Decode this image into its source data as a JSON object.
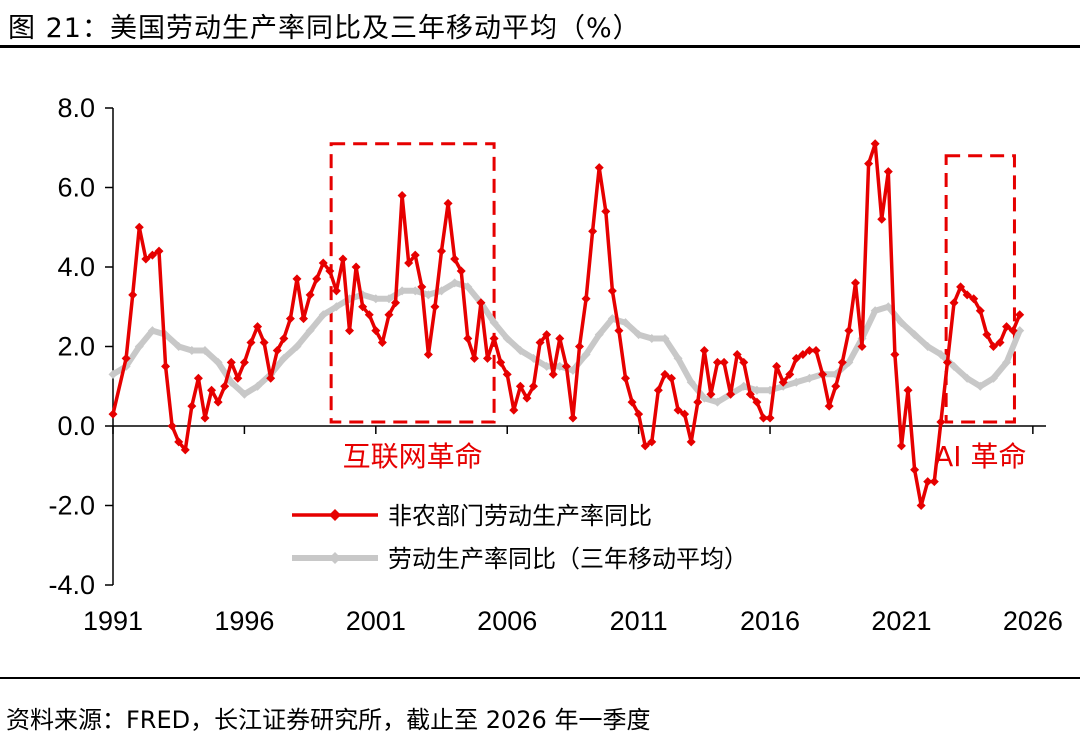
{
  "figure": {
    "title": "图 21：美国劳动生产率同比及三年移动平均（%）",
    "source": "资料来源：FRED，长江证券研究所，截止至 2026 年一季度"
  },
  "chart_data": {
    "type": "line",
    "ylim": [
      -4,
      8
    ],
    "yticks": [
      "8.0",
      "6.0",
      "4.0",
      "2.0",
      "0.0",
      "-2.0",
      "-4.0"
    ],
    "xlim": [
      1991,
      2026.5
    ],
    "xticks": [
      "1991",
      "1996",
      "2001",
      "2006",
      "2011",
      "2016",
      "2021",
      "2026"
    ],
    "grid": false,
    "legend_position": "lower-middle",
    "colors": {
      "series1": "#e60000",
      "series2": "#c8c8c8",
      "annotation": "#e60000"
    },
    "series": [
      {
        "name": "非农部门劳动生产率同比",
        "points": [
          [
            1991.0,
            0.3
          ],
          [
            1991.5,
            1.7
          ],
          [
            1991.75,
            3.3
          ],
          [
            1992.0,
            5.0
          ],
          [
            1992.25,
            4.2
          ],
          [
            1992.5,
            4.3
          ],
          [
            1992.75,
            4.4
          ],
          [
            1993.0,
            1.5
          ],
          [
            1993.25,
            0.0
          ],
          [
            1993.5,
            -0.4
          ],
          [
            1993.75,
            -0.6
          ],
          [
            1994.0,
            0.5
          ],
          [
            1994.25,
            1.2
          ],
          [
            1994.5,
            0.2
          ],
          [
            1994.75,
            0.9
          ],
          [
            1995.0,
            0.6
          ],
          [
            1995.25,
            1.0
          ],
          [
            1995.5,
            1.6
          ],
          [
            1995.75,
            1.2
          ],
          [
            1996.0,
            1.6
          ],
          [
            1996.25,
            2.1
          ],
          [
            1996.5,
            2.5
          ],
          [
            1996.75,
            2.1
          ],
          [
            1997.0,
            1.2
          ],
          [
            1997.25,
            1.9
          ],
          [
            1997.5,
            2.2
          ],
          [
            1997.75,
            2.7
          ],
          [
            1998.0,
            3.7
          ],
          [
            1998.25,
            2.7
          ],
          [
            1998.5,
            3.3
          ],
          [
            1998.75,
            3.7
          ],
          [
            1999.0,
            4.1
          ],
          [
            1999.25,
            3.9
          ],
          [
            1999.5,
            3.4
          ],
          [
            1999.75,
            4.2
          ],
          [
            2000.0,
            2.4
          ],
          [
            2000.25,
            4.0
          ],
          [
            2000.5,
            3.0
          ],
          [
            2000.75,
            2.8
          ],
          [
            2001.0,
            2.4
          ],
          [
            2001.25,
            2.1
          ],
          [
            2001.5,
            2.8
          ],
          [
            2001.75,
            3.1
          ],
          [
            2002.0,
            5.8
          ],
          [
            2002.25,
            4.1
          ],
          [
            2002.5,
            4.3
          ],
          [
            2002.75,
            3.5
          ],
          [
            2003.0,
            1.8
          ],
          [
            2003.25,
            3.0
          ],
          [
            2003.5,
            4.4
          ],
          [
            2003.75,
            5.6
          ],
          [
            2004.0,
            4.2
          ],
          [
            2004.25,
            3.9
          ],
          [
            2004.5,
            2.2
          ],
          [
            2004.75,
            1.7
          ],
          [
            2005.0,
            3.1
          ],
          [
            2005.25,
            1.7
          ],
          [
            2005.5,
            2.2
          ],
          [
            2005.75,
            1.6
          ],
          [
            2006.0,
            1.3
          ],
          [
            2006.25,
            0.4
          ],
          [
            2006.5,
            1.0
          ],
          [
            2006.75,
            0.7
          ],
          [
            2007.0,
            1.0
          ],
          [
            2007.25,
            2.1
          ],
          [
            2007.5,
            2.3
          ],
          [
            2007.75,
            1.3
          ],
          [
            2008.0,
            2.2
          ],
          [
            2008.25,
            1.5
          ],
          [
            2008.5,
            0.2
          ],
          [
            2008.75,
            2.0
          ],
          [
            2009.0,
            3.2
          ],
          [
            2009.25,
            4.9
          ],
          [
            2009.5,
            6.5
          ],
          [
            2009.75,
            5.4
          ],
          [
            2010.0,
            3.4
          ],
          [
            2010.25,
            2.4
          ],
          [
            2010.5,
            1.2
          ],
          [
            2010.75,
            0.6
          ],
          [
            2011.0,
            0.3
          ],
          [
            2011.25,
            -0.5
          ],
          [
            2011.5,
            -0.4
          ],
          [
            2011.75,
            0.9
          ],
          [
            2012.0,
            1.3
          ],
          [
            2012.25,
            1.2
          ],
          [
            2012.5,
            0.4
          ],
          [
            2012.75,
            0.3
          ],
          [
            2013.0,
            -0.4
          ],
          [
            2013.25,
            0.6
          ],
          [
            2013.5,
            1.9
          ],
          [
            2013.75,
            0.8
          ],
          [
            2014.0,
            1.6
          ],
          [
            2014.25,
            1.6
          ],
          [
            2014.5,
            0.8
          ],
          [
            2014.75,
            1.8
          ],
          [
            2015.0,
            1.6
          ],
          [
            2015.25,
            0.8
          ],
          [
            2015.5,
            0.6
          ],
          [
            2015.75,
            0.2
          ],
          [
            2016.0,
            0.2
          ],
          [
            2016.25,
            1.5
          ],
          [
            2016.5,
            1.1
          ],
          [
            2016.75,
            1.3
          ],
          [
            2017.0,
            1.7
          ],
          [
            2017.25,
            1.8
          ],
          [
            2017.5,
            1.9
          ],
          [
            2017.75,
            1.9
          ],
          [
            2018.0,
            1.3
          ],
          [
            2018.25,
            0.5
          ],
          [
            2018.5,
            1.0
          ],
          [
            2018.75,
            1.6
          ],
          [
            2019.0,
            2.4
          ],
          [
            2019.25,
            3.6
          ],
          [
            2019.5,
            2.0
          ],
          [
            2019.75,
            6.6
          ],
          [
            2020.0,
            7.1
          ],
          [
            2020.25,
            5.2
          ],
          [
            2020.5,
            6.4
          ],
          [
            2020.75,
            1.8
          ],
          [
            2021.0,
            -0.5
          ],
          [
            2021.25,
            0.9
          ],
          [
            2021.5,
            -1.1
          ],
          [
            2021.75,
            -2.0
          ],
          [
            2022.0,
            -1.4
          ],
          [
            2022.25,
            -1.4
          ],
          [
            2022.5,
            0.1
          ],
          [
            2022.75,
            1.6
          ],
          [
            2023.0,
            3.1
          ],
          [
            2023.25,
            3.5
          ],
          [
            2023.5,
            3.3
          ],
          [
            2023.75,
            3.2
          ],
          [
            2024.0,
            2.9
          ],
          [
            2024.25,
            2.3
          ],
          [
            2024.5,
            2.0
          ],
          [
            2024.75,
            2.1
          ],
          [
            2025.0,
            2.5
          ],
          [
            2025.25,
            2.4
          ],
          [
            2025.5,
            2.8
          ]
        ]
      },
      {
        "name": "劳动生产率同比（三年移动平均）",
        "points": [
          [
            1991.0,
            1.3
          ],
          [
            1991.5,
            1.5
          ],
          [
            1992.0,
            2.0
          ],
          [
            1992.5,
            2.4
          ],
          [
            1993.0,
            2.3
          ],
          [
            1993.5,
            2.0
          ],
          [
            1994.0,
            1.9
          ],
          [
            1994.5,
            1.9
          ],
          [
            1995.0,
            1.6
          ],
          [
            1995.5,
            1.1
          ],
          [
            1996.0,
            0.8
          ],
          [
            1996.5,
            1.0
          ],
          [
            1997.0,
            1.3
          ],
          [
            1997.5,
            1.7
          ],
          [
            1998.0,
            2.0
          ],
          [
            1998.5,
            2.4
          ],
          [
            1999.0,
            2.8
          ],
          [
            1999.5,
            3.0
          ],
          [
            2000.0,
            3.2
          ],
          [
            2000.5,
            3.3
          ],
          [
            2001.0,
            3.2
          ],
          [
            2001.5,
            3.2
          ],
          [
            2002.0,
            3.4
          ],
          [
            2002.5,
            3.4
          ],
          [
            2003.0,
            3.3
          ],
          [
            2003.5,
            3.4
          ],
          [
            2004.0,
            3.6
          ],
          [
            2004.5,
            3.5
          ],
          [
            2005.0,
            3.1
          ],
          [
            2005.5,
            2.6
          ],
          [
            2006.0,
            2.2
          ],
          [
            2006.5,
            1.9
          ],
          [
            2007.0,
            1.7
          ],
          [
            2007.5,
            1.5
          ],
          [
            2008.0,
            1.5
          ],
          [
            2008.5,
            1.4
          ],
          [
            2009.0,
            1.8
          ],
          [
            2009.5,
            2.3
          ],
          [
            2010.0,
            2.7
          ],
          [
            2010.5,
            2.6
          ],
          [
            2011.0,
            2.3
          ],
          [
            2011.5,
            2.2
          ],
          [
            2012.0,
            2.2
          ],
          [
            2012.5,
            1.7
          ],
          [
            2013.0,
            1.1
          ],
          [
            2013.5,
            0.7
          ],
          [
            2014.0,
            0.6
          ],
          [
            2014.5,
            0.8
          ],
          [
            2015.0,
            1.0
          ],
          [
            2015.5,
            0.9
          ],
          [
            2016.0,
            0.9
          ],
          [
            2016.5,
            1.0
          ],
          [
            2017.0,
            1.1
          ],
          [
            2017.5,
            1.2
          ],
          [
            2018.0,
            1.3
          ],
          [
            2018.5,
            1.3
          ],
          [
            2019.0,
            1.6
          ],
          [
            2019.5,
            2.2
          ],
          [
            2020.0,
            2.9
          ],
          [
            2020.5,
            3.0
          ],
          [
            2021.0,
            2.6
          ],
          [
            2021.5,
            2.3
          ],
          [
            2022.0,
            2.0
          ],
          [
            2022.5,
            1.8
          ],
          [
            2023.0,
            1.5
          ],
          [
            2023.5,
            1.2
          ],
          [
            2024.0,
            1.0
          ],
          [
            2024.5,
            1.2
          ],
          [
            2025.0,
            1.6
          ],
          [
            2025.5,
            2.4
          ]
        ]
      }
    ],
    "annotations": [
      {
        "label": "互联网革命",
        "x_range": [
          1999.3,
          2005.5
        ],
        "y_range": [
          0.1,
          7.1
        ]
      },
      {
        "label": "AI 革命",
        "x_range": [
          2022.7,
          2025.3
        ],
        "y_range": [
          0.1,
          6.8
        ]
      }
    ]
  }
}
